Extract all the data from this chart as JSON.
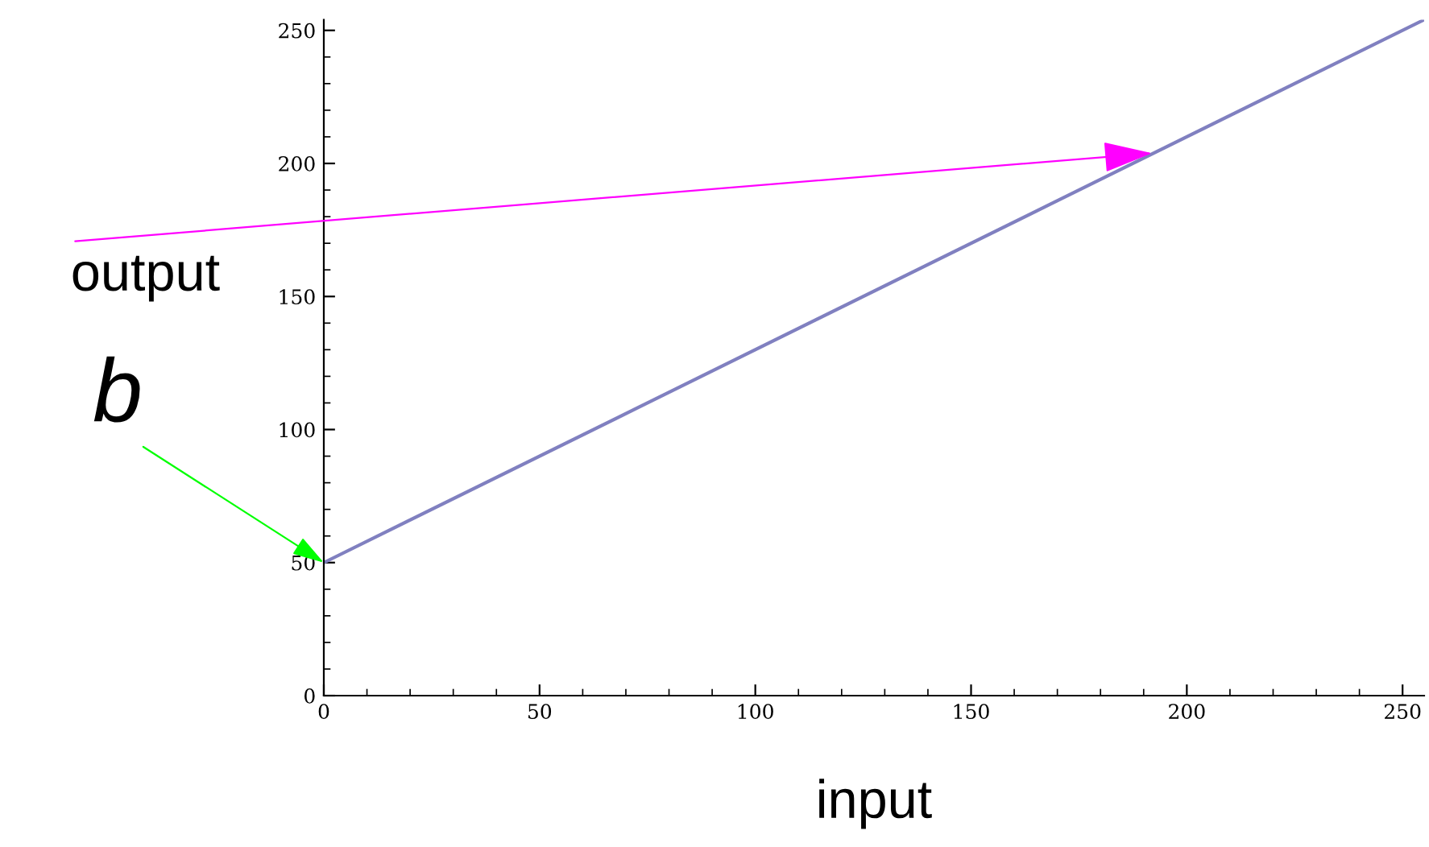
{
  "chart_data": {
    "type": "line",
    "xlabel": "input",
    "x": [
      0,
      255
    ],
    "series": [
      {
        "color": "#8080c0",
        "values": [
          50,
          254
        ]
      }
    ],
    "xlim": [
      0,
      255
    ],
    "ylim": [
      0,
      254
    ],
    "xticks": [
      0,
      50,
      100,
      150,
      200,
      250
    ],
    "yticks": [
      0,
      50,
      100,
      150,
      200,
      250
    ],
    "grid": false,
    "legend": false,
    "marker": "none",
    "line_style": "solid",
    "annotations": [
      {
        "text": "output",
        "x": 193,
        "y": 204
      },
      {
        "text": "b",
        "x": 0,
        "y": 50
      }
    ]
  }
}
